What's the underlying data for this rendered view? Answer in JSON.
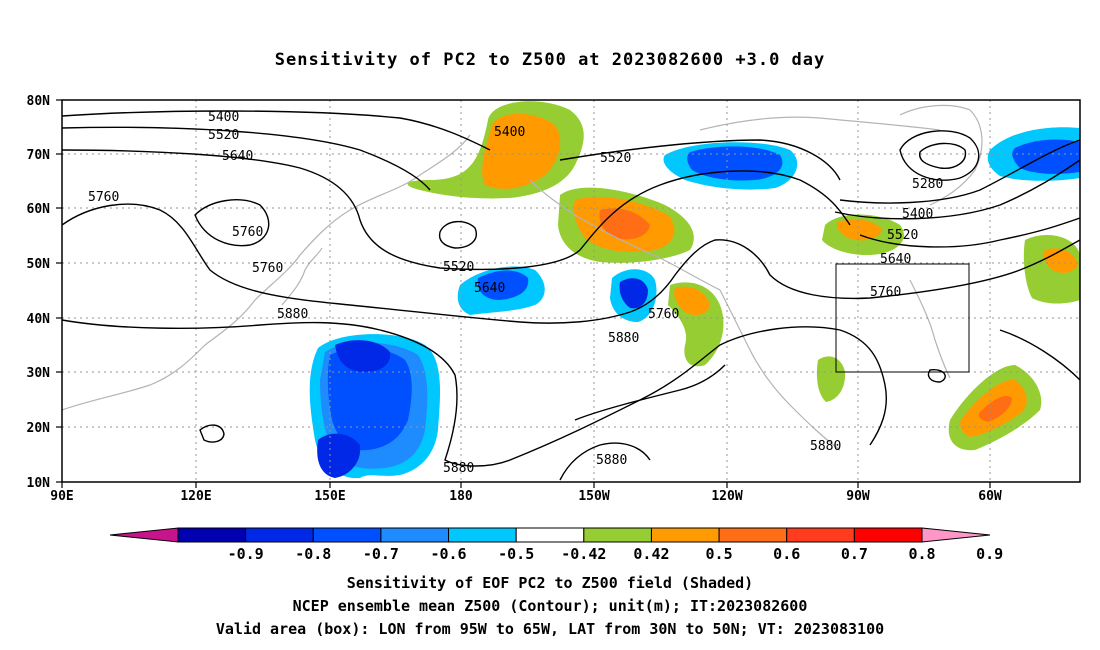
{
  "title": "Sensitivity of PC2 to Z500 at 2023082600 +3.0 day",
  "lat_labels": [
    "80N",
    "70N",
    "60N",
    "50N",
    "40N",
    "30N",
    "20N",
    "10N"
  ],
  "lon_labels": [
    "90E",
    "120E",
    "150E",
    "180",
    "150W",
    "120W",
    "90W",
    "60W"
  ],
  "colorbar": {
    "colors": [
      "#c8148c",
      "#0000b0",
      "#0028e6",
      "#0050ff",
      "#1e8cff",
      "#00c8ff",
      "#ffffff",
      "#96cd32",
      "#ff9b00",
      "#ff6e14",
      "#ff3c1e",
      "#ff0000",
      "#ff96c8"
    ],
    "labels": [
      "-0.9",
      "-0.8",
      "-0.7",
      "-0.6",
      "-0.5",
      "-0.42",
      "0.42",
      "0.5",
      "0.6",
      "0.7",
      "0.8",
      "0.9"
    ]
  },
  "contour_labels": [
    "5400",
    "5520",
    "5640",
    "5760",
    "5760",
    "5760",
    "5880",
    "5400",
    "5520",
    "5520",
    "5640",
    "5880",
    "5760",
    "5280",
    "5400",
    "5520",
    "5640",
    "5760",
    "5880",
    "5880",
    "5880"
  ],
  "valid_box": {
    "lon": "95W to 65W",
    "lat": "30N to 50N"
  },
  "captions": {
    "line1": "Sensitivity of EOF PC2 to Z500 field (Shaded)",
    "line2": "NCEP ensemble mean Z500 (Contour); unit(m); IT:2023082600",
    "line3": "Valid area (box): LON from 95W to 65W, LAT from 30N to 50N; VT: 2023083100"
  }
}
